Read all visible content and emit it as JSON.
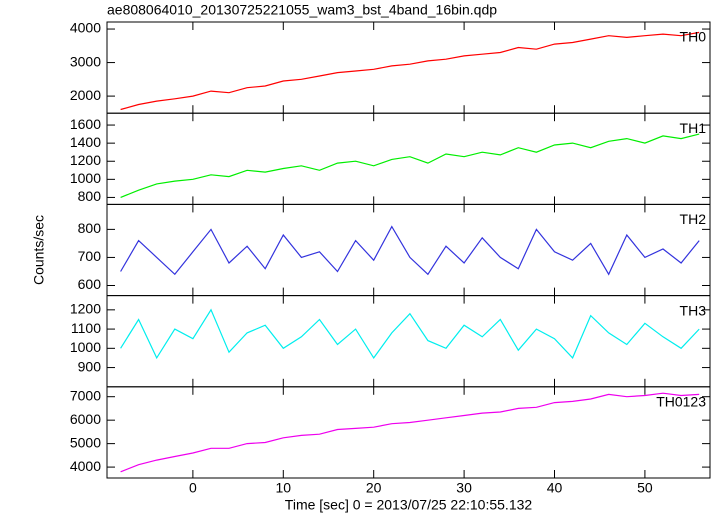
{
  "chart_data": [
    {
      "type": "line",
      "title": "ae808064010_20130725221055_wam3_bst_4band_16bin.qdp",
      "x": [
        -8,
        -6,
        -4,
        -2,
        0,
        2,
        4,
        6,
        8,
        10,
        12,
        14,
        16,
        18,
        20,
        22,
        24,
        26,
        28,
        30,
        32,
        34,
        36,
        38,
        40,
        42,
        44,
        46,
        48,
        50,
        52,
        54,
        56
      ],
      "series": [
        {
          "name": "TH0",
          "color": "#ff0000",
          "values": [
            1600,
            1750,
            1850,
            1920,
            2000,
            2150,
            2100,
            2250,
            2300,
            2450,
            2500,
            2600,
            2700,
            2750,
            2800,
            2900,
            2950,
            3050,
            3100,
            3200,
            3250,
            3300,
            3450,
            3400,
            3550,
            3600,
            3700,
            3800,
            3750,
            3800,
            3850,
            3800,
            3900
          ]
        }
      ],
      "ylim": [
        1490,
        4210
      ],
      "yticks": [
        2000,
        3000,
        4000
      ]
    },
    {
      "type": "line",
      "ylabel": "Counts/sec",
      "x": [
        -8,
        -6,
        -4,
        -2,
        0,
        2,
        4,
        6,
        8,
        10,
        12,
        14,
        16,
        18,
        20,
        22,
        24,
        26,
        28,
        30,
        32,
        34,
        36,
        38,
        40,
        42,
        44,
        46,
        48,
        50,
        52,
        54,
        56
      ],
      "series": [
        {
          "name": "TH1",
          "color": "#00ee00",
          "values": [
            800,
            880,
            950,
            980,
            1000,
            1050,
            1030,
            1100,
            1080,
            1120,
            1150,
            1100,
            1180,
            1200,
            1150,
            1220,
            1250,
            1180,
            1280,
            1250,
            1300,
            1270,
            1350,
            1300,
            1380,
            1400,
            1350,
            1420,
            1450,
            1400,
            1480,
            1450,
            1500
          ]
        }
      ],
      "ylim": [
        723,
        1731
      ],
      "yticks": [
        800,
        1000,
        1200,
        1400,
        1600
      ]
    },
    {
      "type": "line",
      "x": [
        -8,
        -6,
        -4,
        -2,
        0,
        2,
        4,
        6,
        8,
        10,
        12,
        14,
        16,
        18,
        20,
        22,
        24,
        26,
        28,
        30,
        32,
        34,
        36,
        38,
        40,
        42,
        44,
        46,
        48,
        50,
        52,
        54,
        56
      ],
      "series": [
        {
          "name": "TH2",
          "color": "#3333dd",
          "values": [
            650,
            760,
            700,
            640,
            720,
            800,
            680,
            740,
            660,
            780,
            700,
            720,
            650,
            760,
            690,
            810,
            700,
            640,
            740,
            680,
            770,
            700,
            660,
            800,
            720,
            690,
            750,
            640,
            780,
            700,
            730,
            680,
            760
          ]
        }
      ],
      "ylim": [
        564,
        889
      ],
      "yticks": [
        600,
        700,
        800
      ]
    },
    {
      "type": "line",
      "x": [
        -8,
        -6,
        -4,
        -2,
        0,
        2,
        4,
        6,
        8,
        10,
        12,
        14,
        16,
        18,
        20,
        22,
        24,
        26,
        28,
        30,
        32,
        34,
        36,
        38,
        40,
        42,
        44,
        46,
        48,
        50,
        52,
        54,
        56
      ],
      "series": [
        {
          "name": "TH3",
          "color": "#00eeee",
          "values": [
            1000,
            1150,
            950,
            1100,
            1050,
            1200,
            980,
            1080,
            1120,
            1000,
            1060,
            1150,
            1020,
            1100,
            950,
            1080,
            1180,
            1040,
            1000,
            1120,
            1060,
            1150,
            990,
            1100,
            1050,
            950,
            1170,
            1080,
            1020,
            1130,
            1060,
            1000,
            1100
          ]
        }
      ],
      "ylim": [
        800,
        1274
      ],
      "yticks": [
        900,
        1000,
        1100,
        1200
      ]
    },
    {
      "type": "line",
      "xlabel": "Time [sec] 0 = 2013/07/25 22:10:55.132",
      "x": [
        -8,
        -6,
        -4,
        -2,
        0,
        2,
        4,
        6,
        8,
        10,
        12,
        14,
        16,
        18,
        20,
        22,
        24,
        26,
        28,
        30,
        32,
        34,
        36,
        38,
        40,
        42,
        44,
        46,
        48,
        50,
        52,
        54,
        56
      ],
      "series": [
        {
          "name": "TH0123",
          "color": "#ee00ee",
          "values": [
            3800,
            4100,
            4300,
            4450,
            4600,
            4800,
            4800,
            5000,
            5050,
            5250,
            5350,
            5400,
            5600,
            5650,
            5700,
            5850,
            5900,
            6000,
            6100,
            6200,
            6300,
            6350,
            6500,
            6550,
            6750,
            6800,
            6900,
            7100,
            7000,
            7050,
            7150,
            7050,
            7100
          ]
        }
      ],
      "ylim": [
        3535,
        7422
      ],
      "yticks": [
        4000,
        5000,
        6000,
        7000
      ],
      "xlim": [
        -9.5,
        57.2
      ],
      "xticks": [
        0,
        10,
        20,
        30,
        40,
        50
      ]
    }
  ]
}
